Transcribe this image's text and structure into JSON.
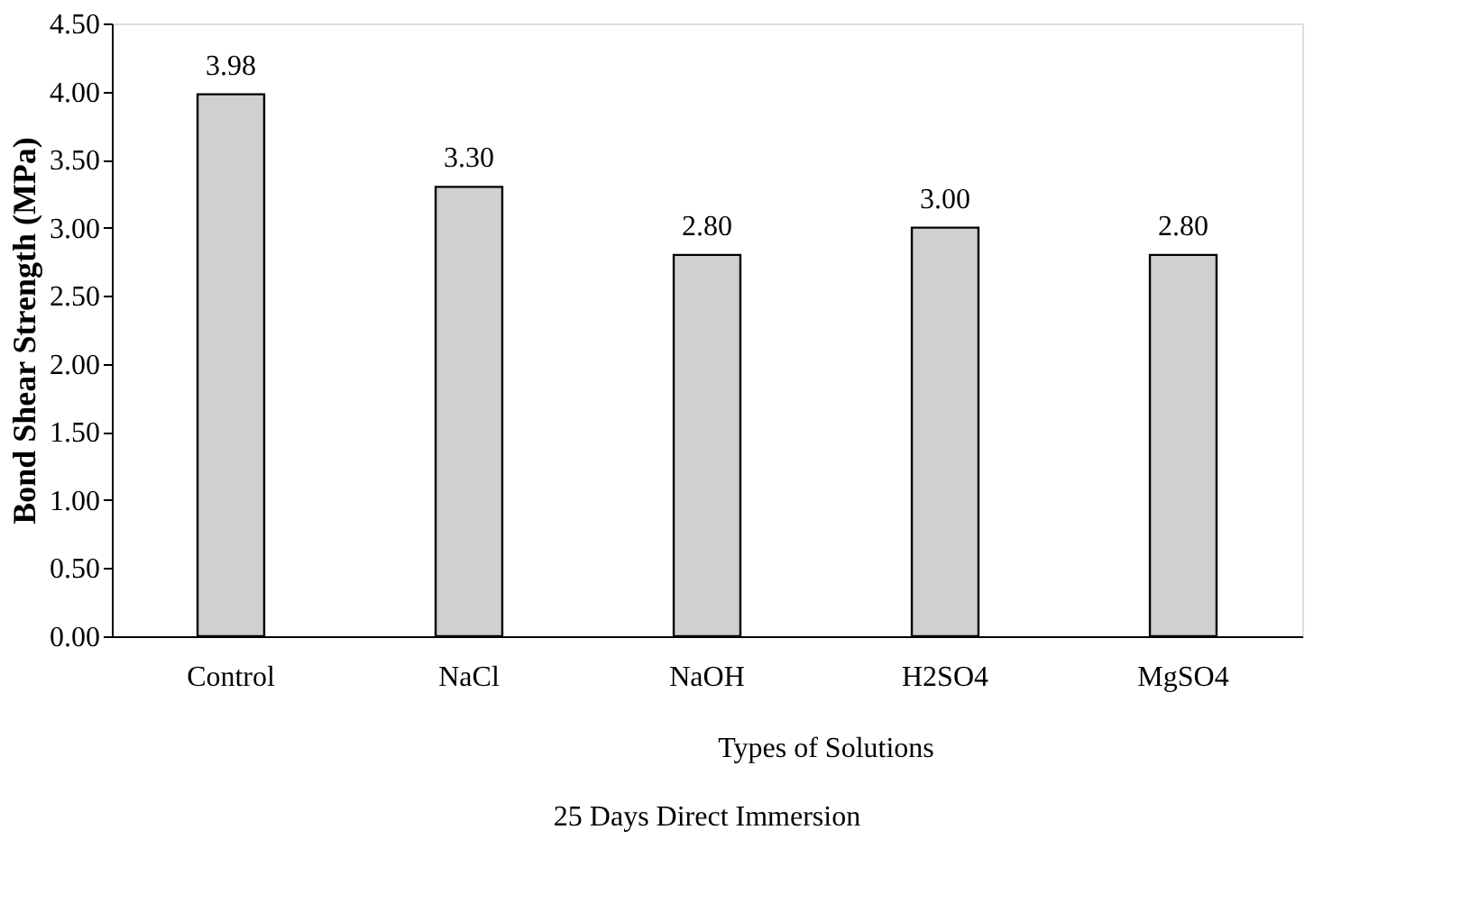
{
  "chart_data": {
    "type": "bar",
    "ylabel": "Bond Shear Strength (MPa)",
    "xlabel": "25 Days Direct Immersion",
    "annotations": [
      "Types of Solutions"
    ],
    "categories": [
      "Control",
      "NaCl",
      "NaOH",
      "H2SO4",
      "MgSO4"
    ],
    "values": [
      3.98,
      3.3,
      2.8,
      3.0,
      2.8
    ],
    "value_labels": [
      "3.98",
      "3.30",
      "2.80",
      "3.00",
      "2.80"
    ],
    "color": "#d0d0d0",
    "ylim": [
      0,
      4.5
    ],
    "yticks": [
      {
        "value": 0,
        "label": "0.00"
      },
      {
        "value": 0.5,
        "label": "0.50"
      },
      {
        "value": 1,
        "label": "1.00"
      },
      {
        "value": 1.5,
        "label": "1.50"
      },
      {
        "value": 2,
        "label": "2.00"
      },
      {
        "value": 2.5,
        "label": "2.50"
      },
      {
        "value": 3,
        "label": "3.00"
      },
      {
        "value": 3.5,
        "label": "3.50"
      },
      {
        "value": 4,
        "label": "4.00"
      },
      {
        "value": 4.5,
        "label": "4.50"
      }
    ],
    "grid": false
  }
}
